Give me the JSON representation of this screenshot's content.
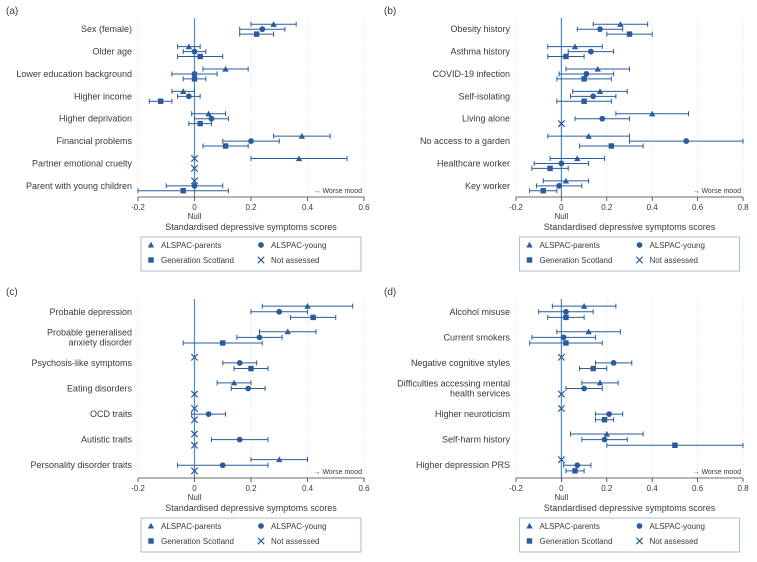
{
  "global": {
    "colors": {
      "marker": "#2a5b9c",
      "null_line": "#4a8ac8",
      "grid": "#c9c9c9",
      "grid_minor": "#e0e0e0",
      "text": "#3a3a3a",
      "legend_border": "#9aaec7",
      "legend_bg": "#ffffff"
    },
    "fonts": {
      "label": 9,
      "tick": 8,
      "axis_title": 9,
      "panel_letter": 10,
      "annotation": 7,
      "legend": 8
    },
    "markers": {
      "ALSPAC_parents": "triangle",
      "ALSPAC_young": "circle",
      "Generation_Scotland": "square",
      "Not_assessed": "cross"
    },
    "legend_items": [
      {
        "label": "ALSPAC-parents",
        "marker": "triangle"
      },
      {
        "label": "ALSPAC-young",
        "marker": "circle"
      },
      {
        "label": "Generation Scotland",
        "marker": "square"
      },
      {
        "label": "Not assessed",
        "marker": "cross"
      }
    ],
    "axis_title": "Standardised depressive symptoms scores",
    "null_label": "Null",
    "worse_mood": "Worse mood"
  },
  "panels": {
    "a": {
      "letter": "(a)",
      "xlim": [
        -0.2,
        0.6
      ],
      "xticks": [
        -0.2,
        0,
        0.2,
        0.4,
        0.6
      ],
      "categories": [
        "Sex (female)",
        "Older age",
        "Lower education background",
        "Higher income",
        "Higher deprivation",
        "Financial problems",
        "Partner emotional cruelty",
        "Parent with young children"
      ],
      "series": [
        {
          "cohort": "ALSPAC_parents",
          "row": 0,
          "x": 0.28,
          "lo": 0.2,
          "hi": 0.36
        },
        {
          "cohort": "ALSPAC_young",
          "row": 0,
          "x": 0.24,
          "lo": 0.16,
          "hi": 0.32
        },
        {
          "cohort": "Generation_Scotland",
          "row": 0,
          "x": 0.22,
          "lo": 0.16,
          "hi": 0.28
        },
        {
          "cohort": "ALSPAC_parents",
          "row": 1,
          "x": -0.02,
          "lo": -0.06,
          "hi": 0.02
        },
        {
          "cohort": "ALSPAC_young",
          "row": 1,
          "x": 0.0,
          "lo": -0.04,
          "hi": 0.04
        },
        {
          "cohort": "Generation_Scotland",
          "row": 1,
          "x": 0.02,
          "lo": -0.06,
          "hi": 0.1
        },
        {
          "cohort": "ALSPAC_parents",
          "row": 2,
          "x": 0.11,
          "lo": 0.03,
          "hi": 0.19
        },
        {
          "cohort": "ALSPAC_young",
          "row": 2,
          "x": 0.0,
          "lo": -0.08,
          "hi": 0.08
        },
        {
          "cohort": "Generation_Scotland",
          "row": 2,
          "x": 0.0,
          "lo": -0.04,
          "hi": 0.04
        },
        {
          "cohort": "ALSPAC_parents",
          "row": 3,
          "x": -0.04,
          "lo": -0.08,
          "hi": 0.0
        },
        {
          "cohort": "ALSPAC_young",
          "row": 3,
          "x": -0.02,
          "lo": -0.06,
          "hi": 0.02
        },
        {
          "cohort": "Generation_Scotland",
          "row": 3,
          "x": -0.12,
          "lo": -0.16,
          "hi": -0.08
        },
        {
          "cohort": "ALSPAC_parents",
          "row": 4,
          "x": 0.05,
          "lo": -0.01,
          "hi": 0.11
        },
        {
          "cohort": "ALSPAC_young",
          "row": 4,
          "x": 0.06,
          "lo": 0.0,
          "hi": 0.12
        },
        {
          "cohort": "Generation_Scotland",
          "row": 4,
          "x": 0.02,
          "lo": -0.02,
          "hi": 0.06
        },
        {
          "cohort": "ALSPAC_parents",
          "row": 5,
          "x": 0.38,
          "lo": 0.28,
          "hi": 0.48
        },
        {
          "cohort": "ALSPAC_young",
          "row": 5,
          "x": 0.2,
          "lo": 0.1,
          "hi": 0.3
        },
        {
          "cohort": "Generation_Scotland",
          "row": 5,
          "x": 0.11,
          "lo": 0.03,
          "hi": 0.19
        },
        {
          "cohort": "ALSPAC_parents",
          "row": 6,
          "x": 0.37,
          "lo": 0.2,
          "hi": 0.54
        },
        {
          "cohort": "Not_assessed",
          "row": 6,
          "x": 0.0
        },
        {
          "cohort": "Not_assessed",
          "row": 6,
          "x": 0.0,
          "slot": 2
        },
        {
          "cohort": "Not_assessed",
          "row": 7,
          "x": 0.0
        },
        {
          "cohort": "ALSPAC_young",
          "row": 7,
          "x": 0.0,
          "lo": -0.1,
          "hi": 0.1
        },
        {
          "cohort": "Generation_Scotland",
          "row": 7,
          "x": -0.04,
          "lo": -0.2,
          "hi": 0.12
        }
      ]
    },
    "b": {
      "letter": "(b)",
      "xlim": [
        -0.2,
        0.8
      ],
      "xticks": [
        -0.2,
        0,
        0.2,
        0.4,
        0.6,
        0.8
      ],
      "categories": [
        "Obesity history",
        "Asthma history",
        "COVID-19 infection",
        "Self-isolating",
        "Living alone",
        "No access to a garden",
        "Healthcare worker",
        "Key worker"
      ],
      "series": [
        {
          "cohort": "ALSPAC_parents",
          "row": 0,
          "x": 0.26,
          "lo": 0.14,
          "hi": 0.38
        },
        {
          "cohort": "ALSPAC_young",
          "row": 0,
          "x": 0.17,
          "lo": 0.07,
          "hi": 0.27
        },
        {
          "cohort": "Generation_Scotland",
          "row": 0,
          "x": 0.3,
          "lo": 0.2,
          "hi": 0.4
        },
        {
          "cohort": "ALSPAC_parents",
          "row": 1,
          "x": 0.06,
          "lo": -0.06,
          "hi": 0.18
        },
        {
          "cohort": "ALSPAC_young",
          "row": 1,
          "x": 0.13,
          "lo": 0.03,
          "hi": 0.23
        },
        {
          "cohort": "Generation_Scotland",
          "row": 1,
          "x": 0.02,
          "lo": -0.06,
          "hi": 0.1
        },
        {
          "cohort": "ALSPAC_parents",
          "row": 2,
          "x": 0.16,
          "lo": 0.02,
          "hi": 0.3
        },
        {
          "cohort": "ALSPAC_young",
          "row": 2,
          "x": 0.11,
          "lo": -0.01,
          "hi": 0.23
        },
        {
          "cohort": "Generation_Scotland",
          "row": 2,
          "x": 0.1,
          "lo": -0.02,
          "hi": 0.22
        },
        {
          "cohort": "ALSPAC_parents",
          "row": 3,
          "x": 0.17,
          "lo": 0.05,
          "hi": 0.29
        },
        {
          "cohort": "ALSPAC_young",
          "row": 3,
          "x": 0.14,
          "lo": 0.04,
          "hi": 0.24
        },
        {
          "cohort": "Generation_Scotland",
          "row": 3,
          "x": 0.1,
          "lo": -0.02,
          "hi": 0.22
        },
        {
          "cohort": "ALSPAC_parents",
          "row": 4,
          "x": 0.4,
          "lo": 0.24,
          "hi": 0.56
        },
        {
          "cohort": "ALSPAC_young",
          "row": 4,
          "x": 0.18,
          "lo": 0.06,
          "hi": 0.3
        },
        {
          "cohort": "Not_assessed",
          "row": 4,
          "x": 0.0,
          "slot": 2
        },
        {
          "cohort": "ALSPAC_parents",
          "row": 5,
          "x": 0.12,
          "lo": -0.06,
          "hi": 0.3
        },
        {
          "cohort": "ALSPAC_young",
          "row": 5,
          "x": 0.55,
          "lo": 0.3,
          "hi": 0.8
        },
        {
          "cohort": "Generation_Scotland",
          "row": 5,
          "x": 0.22,
          "lo": 0.08,
          "hi": 0.36
        },
        {
          "cohort": "ALSPAC_parents",
          "row": 6,
          "x": 0.07,
          "lo": -0.05,
          "hi": 0.19
        },
        {
          "cohort": "ALSPAC_young",
          "row": 6,
          "x": 0.0,
          "lo": -0.12,
          "hi": 0.12
        },
        {
          "cohort": "Generation_Scotland",
          "row": 6,
          "x": -0.05,
          "lo": -0.13,
          "hi": 0.03
        },
        {
          "cohort": "ALSPAC_parents",
          "row": 7,
          "x": 0.02,
          "lo": -0.08,
          "hi": 0.12
        },
        {
          "cohort": "ALSPAC_young",
          "row": 7,
          "x": -0.01,
          "lo": -0.11,
          "hi": 0.09
        },
        {
          "cohort": "Generation_Scotland",
          "row": 7,
          "x": -0.08,
          "lo": -0.14,
          "hi": -0.02
        }
      ]
    },
    "c": {
      "letter": "(c)",
      "xlim": [
        -0.2,
        0.6
      ],
      "xticks": [
        -0.2,
        0,
        0.2,
        0.4,
        0.6
      ],
      "categories": [
        "Probable depression",
        "Probable generalised\nanxiety disorder",
        "Psychosis-like symptoms",
        "Eating disorders",
        "OCD traits",
        "Autistic traits",
        "Personality disorder traits"
      ],
      "series": [
        {
          "cohort": "ALSPAC_parents",
          "row": 0,
          "x": 0.4,
          "lo": 0.24,
          "hi": 0.56
        },
        {
          "cohort": "ALSPAC_young",
          "row": 0,
          "x": 0.3,
          "lo": 0.2,
          "hi": 0.4
        },
        {
          "cohort": "Generation_Scotland",
          "row": 0,
          "x": 0.42,
          "lo": 0.34,
          "hi": 0.5
        },
        {
          "cohort": "ALSPAC_parents",
          "row": 1,
          "x": 0.33,
          "lo": 0.23,
          "hi": 0.43
        },
        {
          "cohort": "ALSPAC_young",
          "row": 1,
          "x": 0.23,
          "lo": 0.15,
          "hi": 0.31
        },
        {
          "cohort": "Generation_Scotland",
          "row": 1,
          "x": 0.1,
          "lo": -0.04,
          "hi": 0.24
        },
        {
          "cohort": "Not_assessed",
          "row": 2,
          "x": 0.0
        },
        {
          "cohort": "ALSPAC_young",
          "row": 2,
          "x": 0.16,
          "lo": 0.1,
          "hi": 0.22
        },
        {
          "cohort": "Generation_Scotland",
          "row": 2,
          "x": 0.2,
          "lo": 0.14,
          "hi": 0.26
        },
        {
          "cohort": "ALSPAC_parents",
          "row": 3,
          "x": 0.14,
          "lo": 0.08,
          "hi": 0.2
        },
        {
          "cohort": "ALSPAC_young",
          "row": 3,
          "x": 0.19,
          "lo": 0.13,
          "hi": 0.25
        },
        {
          "cohort": "Not_assessed",
          "row": 3,
          "x": 0.0,
          "slot": 2
        },
        {
          "cohort": "Not_assessed",
          "row": 4,
          "x": 0.0
        },
        {
          "cohort": "ALSPAC_young",
          "row": 4,
          "x": 0.05,
          "lo": -0.01,
          "hi": 0.11
        },
        {
          "cohort": "Not_assessed",
          "row": 4,
          "x": 0.0,
          "slot": 2
        },
        {
          "cohort": "Not_assessed",
          "row": 5,
          "x": 0.0
        },
        {
          "cohort": "ALSPAC_young",
          "row": 5,
          "x": 0.16,
          "lo": 0.06,
          "hi": 0.26
        },
        {
          "cohort": "Not_assessed",
          "row": 5,
          "x": 0.0,
          "slot": 2
        },
        {
          "cohort": "ALSPAC_parents",
          "row": 6,
          "x": 0.3,
          "lo": 0.2,
          "hi": 0.4
        },
        {
          "cohort": "ALSPAC_young",
          "row": 6,
          "x": 0.1,
          "lo": -0.06,
          "hi": 0.26
        },
        {
          "cohort": "Not_assessed",
          "row": 6,
          "x": 0.0,
          "slot": 2
        }
      ]
    },
    "d": {
      "letter": "(d)",
      "xlim": [
        -0.2,
        0.8
      ],
      "xticks": [
        -0.2,
        0,
        0.2,
        0.4,
        0.6,
        0.8
      ],
      "categories": [
        "Alcohol misuse",
        "Current smokers",
        "Negative cognitive styles",
        "Difficulties accessing mental\nhealth services",
        "Higher neuroticism",
        "Self-harm history",
        "Higher depression PRS"
      ],
      "series": [
        {
          "cohort": "ALSPAC_parents",
          "row": 0,
          "x": 0.1,
          "lo": -0.04,
          "hi": 0.24
        },
        {
          "cohort": "ALSPAC_young",
          "row": 0,
          "x": 0.02,
          "lo": -0.1,
          "hi": 0.14
        },
        {
          "cohort": "Generation_Scotland",
          "row": 0,
          "x": 0.02,
          "lo": -0.06,
          "hi": 0.1
        },
        {
          "cohort": "ALSPAC_parents",
          "row": 1,
          "x": 0.12,
          "lo": -0.02,
          "hi": 0.26
        },
        {
          "cohort": "ALSPAC_young",
          "row": 1,
          "x": 0.01,
          "lo": -0.13,
          "hi": 0.15
        },
        {
          "cohort": "Generation_Scotland",
          "row": 1,
          "x": 0.02,
          "lo": -0.14,
          "hi": 0.18
        },
        {
          "cohort": "Not_assessed",
          "row": 2,
          "x": 0.0
        },
        {
          "cohort": "ALSPAC_young",
          "row": 2,
          "x": 0.23,
          "lo": 0.15,
          "hi": 0.31
        },
        {
          "cohort": "Generation_Scotland",
          "row": 2,
          "x": 0.14,
          "lo": 0.08,
          "hi": 0.2
        },
        {
          "cohort": "ALSPAC_parents",
          "row": 3,
          "x": 0.17,
          "lo": 0.09,
          "hi": 0.25
        },
        {
          "cohort": "ALSPAC_young",
          "row": 3,
          "x": 0.1,
          "lo": 0.02,
          "hi": 0.18
        },
        {
          "cohort": "Not_assessed",
          "row": 3,
          "x": 0.0,
          "slot": 2
        },
        {
          "cohort": "Not_assessed",
          "row": 4,
          "x": 0.0
        },
        {
          "cohort": "ALSPAC_young",
          "row": 4,
          "x": 0.21,
          "lo": 0.15,
          "hi": 0.27
        },
        {
          "cohort": "Generation_Scotland",
          "row": 4,
          "x": 0.19,
          "lo": 0.15,
          "hi": 0.23
        },
        {
          "cohort": "ALSPAC_parents",
          "row": 5,
          "x": 0.2,
          "lo": 0.04,
          "hi": 0.36
        },
        {
          "cohort": "ALSPAC_young",
          "row": 5,
          "x": 0.19,
          "lo": 0.09,
          "hi": 0.29
        },
        {
          "cohort": "Generation_Scotland",
          "row": 5,
          "x": 0.5,
          "lo": 0.2,
          "hi": 0.8
        },
        {
          "cohort": "Not_assessed",
          "row": 6,
          "x": 0.0
        },
        {
          "cohort": "ALSPAC_young",
          "row": 6,
          "x": 0.07,
          "lo": 0.01,
          "hi": 0.13
        },
        {
          "cohort": "Generation_Scotland",
          "row": 6,
          "x": 0.06,
          "lo": 0.02,
          "hi": 0.1
        }
      ]
    }
  }
}
